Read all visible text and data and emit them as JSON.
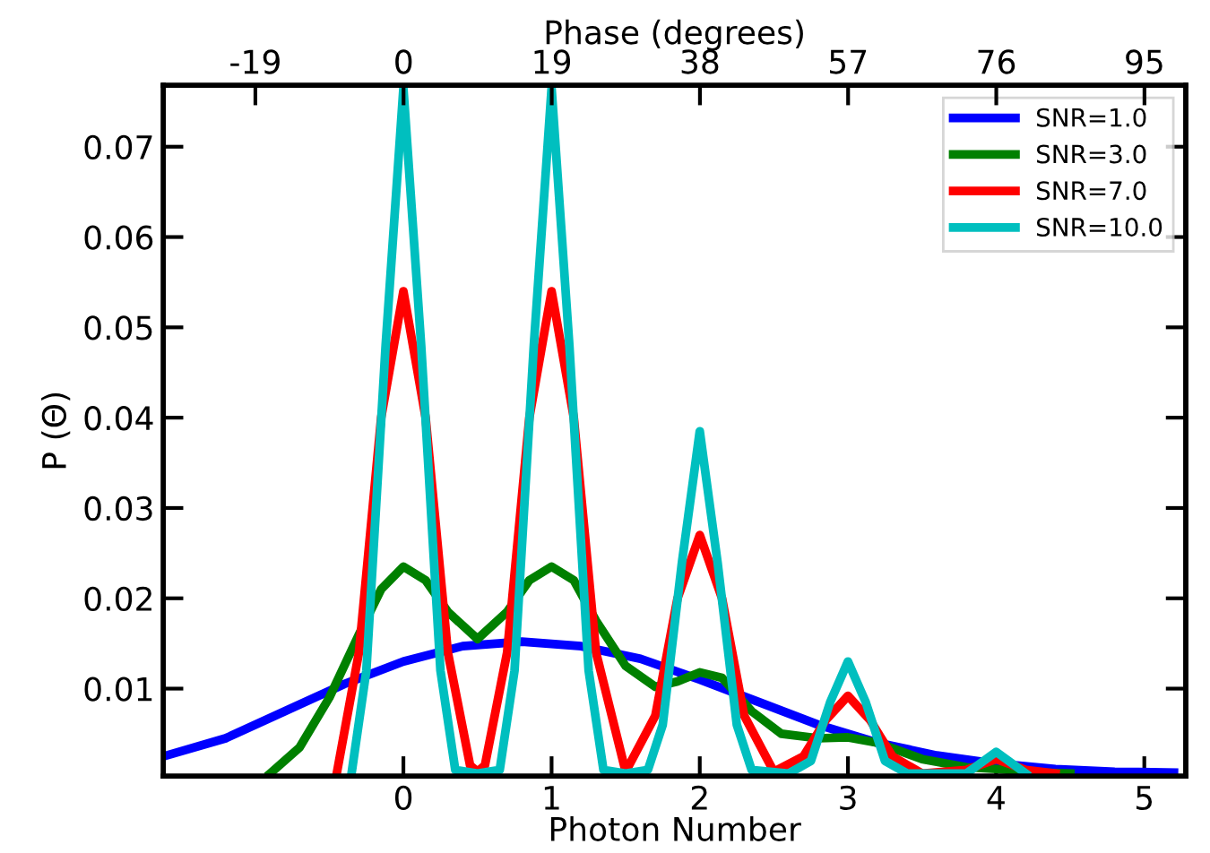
{
  "chart_data": {
    "type": "line",
    "xlabel": "Photon Number",
    "ylabel": "P (Θ)",
    "x2label": "Phase (degrees)",
    "xlim": [
      -1.62,
      5.28
    ],
    "xticks": [
      0,
      1,
      2,
      3,
      4,
      5
    ],
    "x2lim": [
      -30.8,
      100.3
    ],
    "x2ticks": [
      -19,
      0,
      19,
      38,
      57,
      76,
      95
    ],
    "ylim": [
      0.0003,
      0.0768
    ],
    "yticks": [
      0.01,
      0.02,
      0.03,
      0.04,
      0.05,
      0.06,
      0.07
    ],
    "grid": false,
    "legend": "top right",
    "marker": "none",
    "line_style": "solid",
    "series": [
      {
        "name": "SNR=1.0",
        "color": "#0000ff",
        "x": [
          -1.62,
          -1.2,
          -0.8,
          -0.4,
          0,
          0.4,
          0.8,
          1.2,
          1.6,
          2.0,
          2.4,
          2.8,
          3.2,
          3.6,
          4.0,
          4.4,
          4.8,
          5.2
        ],
        "values": [
          0.0025,
          0.0045,
          0.0075,
          0.0105,
          0.013,
          0.0147,
          0.0152,
          0.0147,
          0.0133,
          0.011,
          0.0085,
          0.006,
          0.004,
          0.0026,
          0.0017,
          0.0011,
          0.0008,
          0.0007
        ]
      },
      {
        "name": "SNR=3.0",
        "color": "#008000",
        "x": [
          -0.9,
          -0.7,
          -0.5,
          -0.3,
          -0.15,
          0,
          0.15,
          0.3,
          0.5,
          0.7,
          0.85,
          1.0,
          1.15,
          1.3,
          1.5,
          1.7,
          1.85,
          2.0,
          2.15,
          2.35,
          2.55,
          2.8,
          3.0,
          3.2,
          3.5,
          3.8,
          4.0,
          4.3,
          4.5
        ],
        "values": [
          0.0006,
          0.0035,
          0.009,
          0.016,
          0.021,
          0.0235,
          0.022,
          0.0185,
          0.0155,
          0.0185,
          0.022,
          0.0235,
          0.022,
          0.0175,
          0.0125,
          0.0102,
          0.0108,
          0.0118,
          0.0112,
          0.0075,
          0.005,
          0.0045,
          0.0046,
          0.004,
          0.0022,
          0.0013,
          0.0011,
          0.0007,
          0.0006
        ]
      },
      {
        "name": "SNR=7.0",
        "color": "#ff0000",
        "x": [
          -0.45,
          -0.3,
          -0.15,
          0,
          0.15,
          0.3,
          0.45,
          0.5,
          0.55,
          0.7,
          0.85,
          1,
          1.15,
          1.3,
          1.5,
          1.7,
          1.85,
          2,
          2.15,
          2.3,
          2.5,
          2.7,
          2.85,
          3,
          3.15,
          3.3,
          3.5,
          3.8,
          4,
          4.2,
          4.4
        ],
        "values": [
          0.0006,
          0.014,
          0.04,
          0.054,
          0.04,
          0.014,
          0.0015,
          0.0008,
          0.0015,
          0.014,
          0.04,
          0.054,
          0.04,
          0.014,
          0.0008,
          0.007,
          0.02,
          0.027,
          0.02,
          0.007,
          0.0008,
          0.0025,
          0.0065,
          0.0092,
          0.0065,
          0.0025,
          0.0006,
          0.001,
          0.0022,
          0.001,
          0.0006
        ]
      },
      {
        "name": "SNR=10.0",
        "color": "#00bfbf",
        "x": [
          -0.35,
          -0.25,
          -0.12,
          0,
          0.12,
          0.25,
          0.35,
          0.5,
          0.65,
          0.75,
          0.88,
          1,
          1.12,
          1.25,
          1.35,
          1.5,
          1.65,
          1.75,
          1.88,
          2,
          2.12,
          2.25,
          2.35,
          2.6,
          2.75,
          2.88,
          3,
          3.12,
          3.25,
          3.4,
          3.8,
          3.9,
          4,
          4.1,
          4.2
        ],
        "values": [
          0.0006,
          0.012,
          0.048,
          0.0765,
          0.048,
          0.012,
          0.001,
          0.0006,
          0.001,
          0.012,
          0.048,
          0.0765,
          0.048,
          0.012,
          0.001,
          0.0006,
          0.001,
          0.006,
          0.024,
          0.0385,
          0.024,
          0.006,
          0.001,
          0.0006,
          0.002,
          0.0085,
          0.013,
          0.0085,
          0.002,
          0.0006,
          0.0006,
          0.0018,
          0.003,
          0.0018,
          0.0006
        ]
      }
    ]
  }
}
